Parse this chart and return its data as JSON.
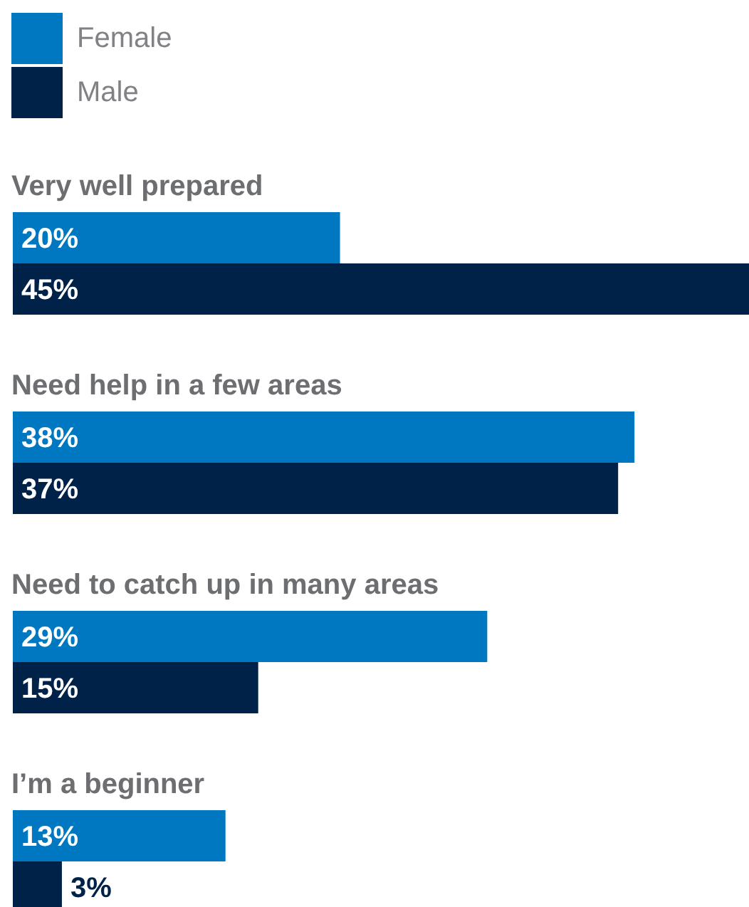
{
  "chart_data": {
    "type": "bar",
    "orientation": "horizontal",
    "categories": [
      "Very well prepared",
      "Need help in a few areas",
      "Need to catch up in many areas",
      "I’m a beginner"
    ],
    "series": [
      {
        "name": "Female",
        "color": "#0078c1",
        "values": [
          20,
          38,
          29,
          13
        ],
        "value_labels": [
          "20%",
          "38%",
          "29%",
          "13%"
        ]
      },
      {
        "name": "Male",
        "color": "#002248",
        "values": [
          45,
          37,
          15,
          3
        ],
        "value_labels": [
          "45%",
          "37%",
          "15%",
          "3%"
        ]
      }
    ],
    "legend": "top left"
  }
}
